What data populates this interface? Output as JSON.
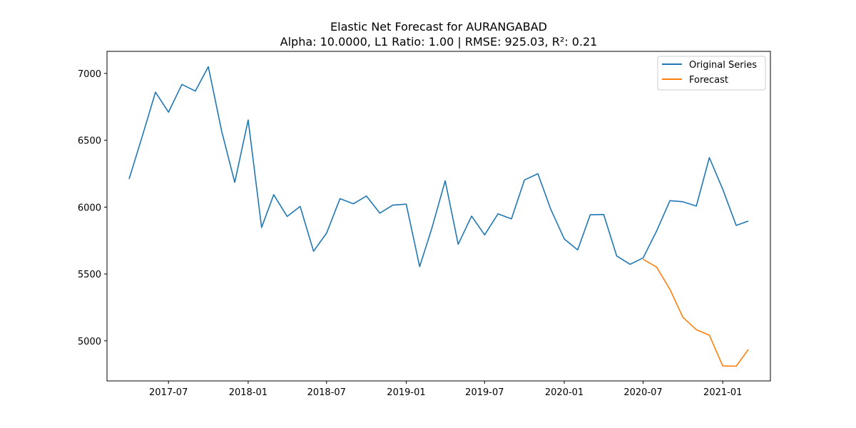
{
  "chart_data": {
    "type": "line",
    "title": "Elastic Net Forecast for AURANGABAD",
    "subtitle": "Alpha: 10.0000, L1 Ratio: 1.00 | RMSE: 925.03, R²: 0.21",
    "xlabel": "",
    "ylabel": "",
    "xlim": [
      "2017-02-09",
      "2021-04-21"
    ],
    "ylim": [
      4700,
      7165
    ],
    "x_ticks": [
      "2017-07",
      "2018-01",
      "2018-07",
      "2019-01",
      "2019-07",
      "2020-01",
      "2020-07",
      "2021-01"
    ],
    "y_ticks": [
      5000,
      5500,
      6000,
      6500,
      7000
    ],
    "grid": false,
    "legend_position": "top-right",
    "series": [
      {
        "name": "Original Series",
        "color": "#1f77b4",
        "x": [
          "2017-04-01",
          "2017-05-01",
          "2017-06-01",
          "2017-07-01",
          "2017-08-01",
          "2017-09-01",
          "2017-10-01",
          "2017-11-01",
          "2017-12-01",
          "2018-01-01",
          "2018-02-01",
          "2018-03-01",
          "2018-04-01",
          "2018-05-01",
          "2018-06-01",
          "2018-07-01",
          "2018-08-01",
          "2018-09-01",
          "2018-10-01",
          "2018-11-01",
          "2018-12-01",
          "2019-01-01",
          "2019-02-01",
          "2019-03-01",
          "2019-04-01",
          "2019-05-01",
          "2019-06-01",
          "2019-07-01",
          "2019-08-01",
          "2019-09-01",
          "2019-10-01",
          "2019-11-01",
          "2019-12-01",
          "2020-01-01",
          "2020-02-01",
          "2020-03-01",
          "2020-04-01",
          "2020-05-01",
          "2020-06-01",
          "2020-07-01",
          "2020-08-01",
          "2020-09-01",
          "2020-10-01",
          "2020-11-01",
          "2020-12-01",
          "2021-01-01",
          "2021-02-01",
          "2021-03-01"
        ],
        "values": [
          6210,
          6525,
          6860,
          6710,
          6918,
          6868,
          7050,
          6565,
          6185,
          6652,
          5848,
          6093,
          5930,
          6005,
          5670,
          5805,
          6063,
          6025,
          6083,
          5955,
          6015,
          6022,
          5555,
          5840,
          6197,
          5722,
          5933,
          5792,
          5950,
          5912,
          6203,
          6250,
          5982,
          5762,
          5680,
          5943,
          5945,
          5635,
          5572,
          5620,
          5820,
          6048,
          6040,
          6008,
          6370,
          6133,
          5863,
          5896
        ]
      },
      {
        "name": "Forecast",
        "color": "#ff7f0e",
        "x": [
          "2020-07-01",
          "2020-08-01",
          "2020-09-01",
          "2020-10-01",
          "2020-11-01",
          "2020-12-01",
          "2021-01-01",
          "2021-02-01",
          "2021-03-01"
        ],
        "values": [
          5610,
          5552,
          5385,
          5175,
          5083,
          5042,
          4812,
          4810,
          4935
        ]
      }
    ]
  }
}
